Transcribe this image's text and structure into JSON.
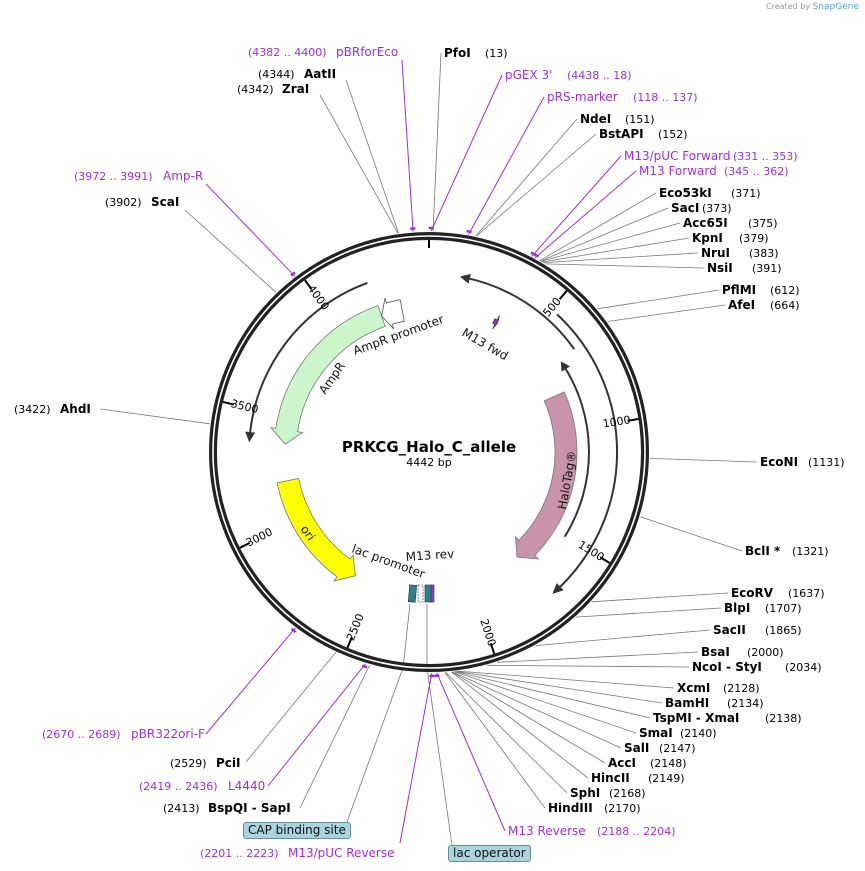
{
  "credit": {
    "prefix": "Created by",
    "brand": "SnapGene"
  },
  "plasmid": {
    "name": "PRKCG_Halo_C_allele",
    "length_label": "4442 bp",
    "length": 4442
  },
  "ticks": [
    500,
    1000,
    1500,
    2000,
    2500,
    3000,
    3500,
    4000
  ],
  "colors": {
    "primer": "#9b30d9",
    "enzyme": "#000000",
    "ampr": "#ccf5cc",
    "ori": "#ffff00",
    "halotag": "#c994ab",
    "lac": "#2e7d8c",
    "green_arc": "#8fd16a",
    "orange_arc": "#f5b65a"
  },
  "sites": [
    {
      "name": "pBRforEco",
      "pos": 4391,
      "pos_label": "(4382 .. 4400)",
      "kind": "primer"
    },
    {
      "name": "PfoI",
      "pos": 13,
      "pos_label": "(13)",
      "kind": "enzyme"
    },
    {
      "name": "AatII",
      "pos": 4344,
      "pos_label": "(4344)",
      "kind": "enzyme"
    },
    {
      "name": "ZraI",
      "pos": 4342,
      "pos_label": "(4342)",
      "kind": "enzyme"
    },
    {
      "name": "pGEX 3'",
      "pos": 7,
      "pos_label": "(4438 .. 18)",
      "kind": "primer"
    },
    {
      "name": "pRS-marker",
      "pos": 127,
      "pos_label": "(118 .. 137)",
      "kind": "primer"
    },
    {
      "name": "NdeI",
      "pos": 151,
      "pos_label": "(151)",
      "kind": "enzyme"
    },
    {
      "name": "BstAPI",
      "pos": 152,
      "pos_label": "(152)",
      "kind": "enzyme"
    },
    {
      "name": "M13/pUC Forward",
      "pos": 342,
      "pos_label": "(331 .. 353)",
      "kind": "primer"
    },
    {
      "name": "M13 Forward",
      "pos": 353,
      "pos_label": "(345 .. 362)",
      "kind": "primer"
    },
    {
      "name": "Eco53kI",
      "pos": 371,
      "pos_label": "(371)",
      "kind": "enzyme"
    },
    {
      "name": "SacI",
      "pos": 373,
      "pos_label": "(373)",
      "kind": "enzyme"
    },
    {
      "name": "Acc65I",
      "pos": 375,
      "pos_label": "(375)",
      "kind": "enzyme"
    },
    {
      "name": "KpnI",
      "pos": 379,
      "pos_label": "(379)",
      "kind": "enzyme"
    },
    {
      "name": "NruI",
      "pos": 383,
      "pos_label": "(383)",
      "kind": "enzyme"
    },
    {
      "name": "NsiI",
      "pos": 391,
      "pos_label": "(391)",
      "kind": "enzyme"
    },
    {
      "name": "PflMI",
      "pos": 612,
      "pos_label": "(612)",
      "kind": "enzyme"
    },
    {
      "name": "AfeI",
      "pos": 664,
      "pos_label": "(664)",
      "kind": "enzyme"
    },
    {
      "name": "EcoNI",
      "pos": 1131,
      "pos_label": "(1131)",
      "kind": "enzyme"
    },
    {
      "name": "BclI *",
      "pos": 1321,
      "pos_label": "(1321)",
      "kind": "enzyme"
    },
    {
      "name": "EcoRV",
      "pos": 1637,
      "pos_label": "(1637)",
      "kind": "enzyme"
    },
    {
      "name": "BlpI",
      "pos": 1707,
      "pos_label": "(1707)",
      "kind": "enzyme"
    },
    {
      "name": "SacII",
      "pos": 1865,
      "pos_label": "(1865)",
      "kind": "enzyme"
    },
    {
      "name": "BsaI",
      "pos": 2000,
      "pos_label": "(2000)",
      "kind": "enzyme"
    },
    {
      "name": "NcoI - StyI",
      "pos": 2034,
      "pos_label": "(2034)",
      "kind": "enzyme"
    },
    {
      "name": "XcmI",
      "pos": 2128,
      "pos_label": "(2128)",
      "kind": "enzyme"
    },
    {
      "name": "BamHI",
      "pos": 2134,
      "pos_label": "(2134)",
      "kind": "enzyme"
    },
    {
      "name": "TspMI - XmaI",
      "pos": 2138,
      "pos_label": "(2138)",
      "kind": "enzyme"
    },
    {
      "name": "SmaI",
      "pos": 2140,
      "pos_label": "(2140)",
      "kind": "enzyme"
    },
    {
      "name": "SalI",
      "pos": 2147,
      "pos_label": "(2147)",
      "kind": "enzyme"
    },
    {
      "name": "AccI",
      "pos": 2148,
      "pos_label": "(2148)",
      "kind": "enzyme"
    },
    {
      "name": "HincII",
      "pos": 2149,
      "pos_label": "(2149)",
      "kind": "enzyme"
    },
    {
      "name": "SphI",
      "pos": 2168,
      "pos_label": "(2168)",
      "kind": "enzyme"
    },
    {
      "name": "HindIII",
      "pos": 2170,
      "pos_label": "(2170)",
      "kind": "enzyme"
    },
    {
      "name": "M13 Reverse",
      "pos": 2196,
      "pos_label": "(2188 .. 2204)",
      "kind": "primer"
    },
    {
      "name": "M13/pUC Reverse",
      "pos": 2212,
      "pos_label": "(2201 .. 2223)",
      "kind": "primer"
    },
    {
      "name": "BspQI - SapI",
      "pos": 2413,
      "pos_label": "(2413)",
      "kind": "enzyme"
    },
    {
      "name": "L4440",
      "pos": 2427,
      "pos_label": "(2419 .. 2436)",
      "kind": "primer"
    },
    {
      "name": "PciI",
      "pos": 2529,
      "pos_label": "(2529)",
      "kind": "enzyme"
    },
    {
      "name": "pBR322ori-F",
      "pos": 2680,
      "pos_label": "(2670 .. 2689)",
      "kind": "primer"
    },
    {
      "name": "AhdI",
      "pos": 3422,
      "pos_label": "(3422)",
      "kind": "enzyme"
    },
    {
      "name": "ScaI",
      "pos": 3902,
      "pos_label": "(3902)",
      "kind": "enzyme"
    },
    {
      "name": "Amp-R",
      "pos": 3981,
      "pos_label": "(3972 .. 3991)",
      "kind": "primer"
    }
  ],
  "features": [
    {
      "name": "AmpR",
      "start": 4205,
      "end": 3370,
      "direction": "reverse"
    },
    {
      "name": "AmpR promoter",
      "start": 4310,
      "end": 4205,
      "direction": "reverse"
    },
    {
      "name": "ori",
      "start": 3190,
      "end": 2600,
      "direction": "reverse"
    },
    {
      "name": "HaloTag®",
      "start": 815,
      "end": 1728,
      "direction": "forward"
    },
    {
      "name": "M13 fwd",
      "start": 325,
      "end": 345,
      "direction": "forward"
    },
    {
      "name": "lac promoter",
      "start": 2270,
      "end": 2240,
      "direction": "reverse"
    },
    {
      "name": "M13 rev",
      "start": 2208,
      "end": 2196,
      "direction": "reverse"
    }
  ],
  "unlabeled_arcs": [
    {
      "start": 4195,
      "end": 3370,
      "direction": "reverse",
      "color": "green"
    },
    {
      "start": 675,
      "end": 123,
      "direction": "reverse",
      "color": "green"
    },
    {
      "start": 1505,
      "end": 685,
      "direction": "reverse",
      "color": "green"
    },
    {
      "start": 530,
      "end": 1715,
      "direction": "forward",
      "color": "orange"
    }
  ],
  "boxed_labels": {
    "cap": "CAP binding site",
    "lac_operator": "lac operator"
  }
}
